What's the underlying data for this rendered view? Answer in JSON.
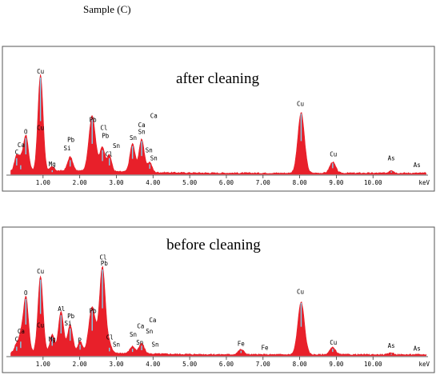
{
  "page_title": "Sample (C)",
  "chart_data": [
    {
      "type": "area",
      "title": "after cleaning",
      "xlabel": "keV",
      "xlim": [
        0,
        11.5
      ],
      "ylim": [
        0,
        100
      ],
      "ticks": [
        {
          "value": 1,
          "label": "1.00"
        },
        {
          "value": 2,
          "label": "2.00"
        },
        {
          "value": 3,
          "label": "3.00"
        },
        {
          "value": 4,
          "label": "4.00"
        },
        {
          "value": 5,
          "label": "5.00"
        },
        {
          "value": 6,
          "label": "6.00"
        },
        {
          "value": 7,
          "label": "7.00"
        },
        {
          "value": 8,
          "label": "8.00"
        },
        {
          "value": 9,
          "label": "9.00"
        },
        {
          "value": 10,
          "label": "10.00"
        }
      ],
      "colors": {
        "fill": "#e8202a",
        "highlight": "#7fd3ee",
        "frame": "#555555"
      },
      "peaks": [
        {
          "x": 0.28,
          "y": 16,
          "width": 0.06
        },
        {
          "x": 0.39,
          "y": 9,
          "width": 0.05
        },
        {
          "x": 0.53,
          "y": 36,
          "width": 0.07
        },
        {
          "x": 0.93,
          "y": 96,
          "width": 0.07
        },
        {
          "x": 1.25,
          "y": 4,
          "width": 0.06
        },
        {
          "x": 1.74,
          "y": 14,
          "width": 0.07
        },
        {
          "x": 2.34,
          "y": 55,
          "width": 0.09
        },
        {
          "x": 2.62,
          "y": 24,
          "width": 0.07
        },
        {
          "x": 2.81,
          "y": 16,
          "width": 0.06
        },
        {
          "x": 3.44,
          "y": 28,
          "width": 0.07
        },
        {
          "x": 3.69,
          "y": 33,
          "width": 0.07
        },
        {
          "x": 3.91,
          "y": 10,
          "width": 0.06
        },
        {
          "x": 8.04,
          "y": 60,
          "width": 0.09
        },
        {
          "x": 8.9,
          "y": 11,
          "width": 0.08
        },
        {
          "x": 10.5,
          "y": 3,
          "width": 0.06
        }
      ],
      "peak_labels": [
        {
          "text": "C",
          "x": 0.28,
          "y": 20
        },
        {
          "text": "Ca",
          "x": 0.4,
          "y": 27
        },
        {
          "text": "O",
          "x": 0.53,
          "y": 40
        },
        {
          "text": "Cu",
          "x": 0.93,
          "y": 100
        },
        {
          "text": "Cu",
          "x": 0.93,
          "y": 44
        },
        {
          "text": "Mg",
          "x": 1.25,
          "y": 8
        },
        {
          "text": "Pb",
          "x": 1.76,
          "y": 32
        },
        {
          "text": "Si",
          "x": 1.66,
          "y": 24
        },
        {
          "text": "Pb",
          "x": 2.36,
          "y": 52
        },
        {
          "text": "Cl",
          "x": 2.66,
          "y": 44
        },
        {
          "text": "Pb",
          "x": 2.7,
          "y": 36
        },
        {
          "text": "Cl",
          "x": 2.8,
          "y": 18
        },
        {
          "text": "Sn",
          "x": 3.0,
          "y": 26
        },
        {
          "text": "Sn",
          "x": 3.46,
          "y": 34
        },
        {
          "text": "Ca",
          "x": 3.69,
          "y": 47
        },
        {
          "text": "Sn",
          "x": 3.69,
          "y": 40
        },
        {
          "text": "Ca",
          "x": 4.02,
          "y": 56
        },
        {
          "text": "Sn",
          "x": 3.89,
          "y": 22
        },
        {
          "text": "Sn",
          "x": 4.02,
          "y": 14
        },
        {
          "text": "Cu",
          "x": 8.02,
          "y": 68
        },
        {
          "text": "Cu",
          "x": 8.92,
          "y": 18
        },
        {
          "text": "As",
          "x": 10.5,
          "y": 14
        },
        {
          "text": "As",
          "x": 11.2,
          "y": 7
        }
      ]
    },
    {
      "type": "area",
      "title": "before cleaning",
      "xlabel": "keV",
      "xlim": [
        0,
        11.5
      ],
      "ylim": [
        0,
        100
      ],
      "ticks": [
        {
          "value": 1,
          "label": "1.00"
        },
        {
          "value": 2,
          "label": "2.00"
        },
        {
          "value": 3,
          "label": "3.00"
        },
        {
          "value": 4,
          "label": "4.00"
        },
        {
          "value": 5,
          "label": "5.00"
        },
        {
          "value": 6,
          "label": "6.00"
        },
        {
          "value": 7,
          "label": "7.00"
        },
        {
          "value": 8,
          "label": "8.00"
        },
        {
          "value": 9,
          "label": "9.00"
        },
        {
          "value": 10,
          "label": "10.00"
        }
      ],
      "colors": {
        "fill": "#e8202a",
        "highlight": "#7fd3ee",
        "frame": "#555555"
      },
      "peaks": [
        {
          "x": 0.28,
          "y": 9,
          "width": 0.06
        },
        {
          "x": 0.39,
          "y": 14,
          "width": 0.05
        },
        {
          "x": 0.53,
          "y": 56,
          "width": 0.07
        },
        {
          "x": 0.93,
          "y": 75,
          "width": 0.07
        },
        {
          "x": 1.25,
          "y": 18,
          "width": 0.06
        },
        {
          "x": 1.49,
          "y": 40,
          "width": 0.07
        },
        {
          "x": 1.74,
          "y": 27,
          "width": 0.07
        },
        {
          "x": 2.01,
          "y": 11,
          "width": 0.06
        },
        {
          "x": 2.34,
          "y": 45,
          "width": 0.09
        },
        {
          "x": 2.62,
          "y": 85,
          "width": 0.08
        },
        {
          "x": 2.81,
          "y": 8,
          "width": 0.06
        },
        {
          "x": 3.44,
          "y": 7,
          "width": 0.07
        },
        {
          "x": 3.69,
          "y": 10,
          "width": 0.07
        },
        {
          "x": 6.4,
          "y": 5,
          "width": 0.08
        },
        {
          "x": 8.04,
          "y": 52,
          "width": 0.09
        },
        {
          "x": 8.9,
          "y": 7,
          "width": 0.08
        },
        {
          "x": 10.5,
          "y": 2,
          "width": 0.06
        }
      ],
      "peak_labels": [
        {
          "text": "C",
          "x": 0.28,
          "y": 14
        },
        {
          "text": "Ca",
          "x": 0.4,
          "y": 22
        },
        {
          "text": "O",
          "x": 0.53,
          "y": 60
        },
        {
          "text": "Cu",
          "x": 0.93,
          "y": 81
        },
        {
          "text": "Cu",
          "x": 0.93,
          "y": 28
        },
        {
          "text": "Mg",
          "x": 1.25,
          "y": 14
        },
        {
          "text": "Al",
          "x": 1.5,
          "y": 44
        },
        {
          "text": "Pb",
          "x": 1.76,
          "y": 37
        },
        {
          "text": "Si",
          "x": 1.68,
          "y": 30
        },
        {
          "text": "P",
          "x": 2.0,
          "y": 13
        },
        {
          "text": "Pb",
          "x": 2.36,
          "y": 42
        },
        {
          "text": "Cl",
          "x": 2.64,
          "y": 95
        },
        {
          "text": "Pb",
          "x": 2.67,
          "y": 89
        },
        {
          "text": "Cl",
          "x": 2.82,
          "y": 16
        },
        {
          "text": "Sn",
          "x": 3.0,
          "y": 9
        },
        {
          "text": "Sn",
          "x": 3.46,
          "y": 19
        },
        {
          "text": "Ca",
          "x": 3.66,
          "y": 27
        },
        {
          "text": "Sn",
          "x": 3.64,
          "y": 11
        },
        {
          "text": "Ca",
          "x": 3.99,
          "y": 33
        },
        {
          "text": "Sn",
          "x": 3.9,
          "y": 22
        },
        {
          "text": "Sn",
          "x": 4.06,
          "y": 9
        },
        {
          "text": "Fe",
          "x": 6.4,
          "y": 10
        },
        {
          "text": "Fe",
          "x": 7.05,
          "y": 6
        },
        {
          "text": "Cu",
          "x": 8.02,
          "y": 61
        },
        {
          "text": "Cu",
          "x": 8.92,
          "y": 11
        },
        {
          "text": "As",
          "x": 10.5,
          "y": 8
        },
        {
          "text": "As",
          "x": 11.2,
          "y": 5
        }
      ]
    }
  ]
}
